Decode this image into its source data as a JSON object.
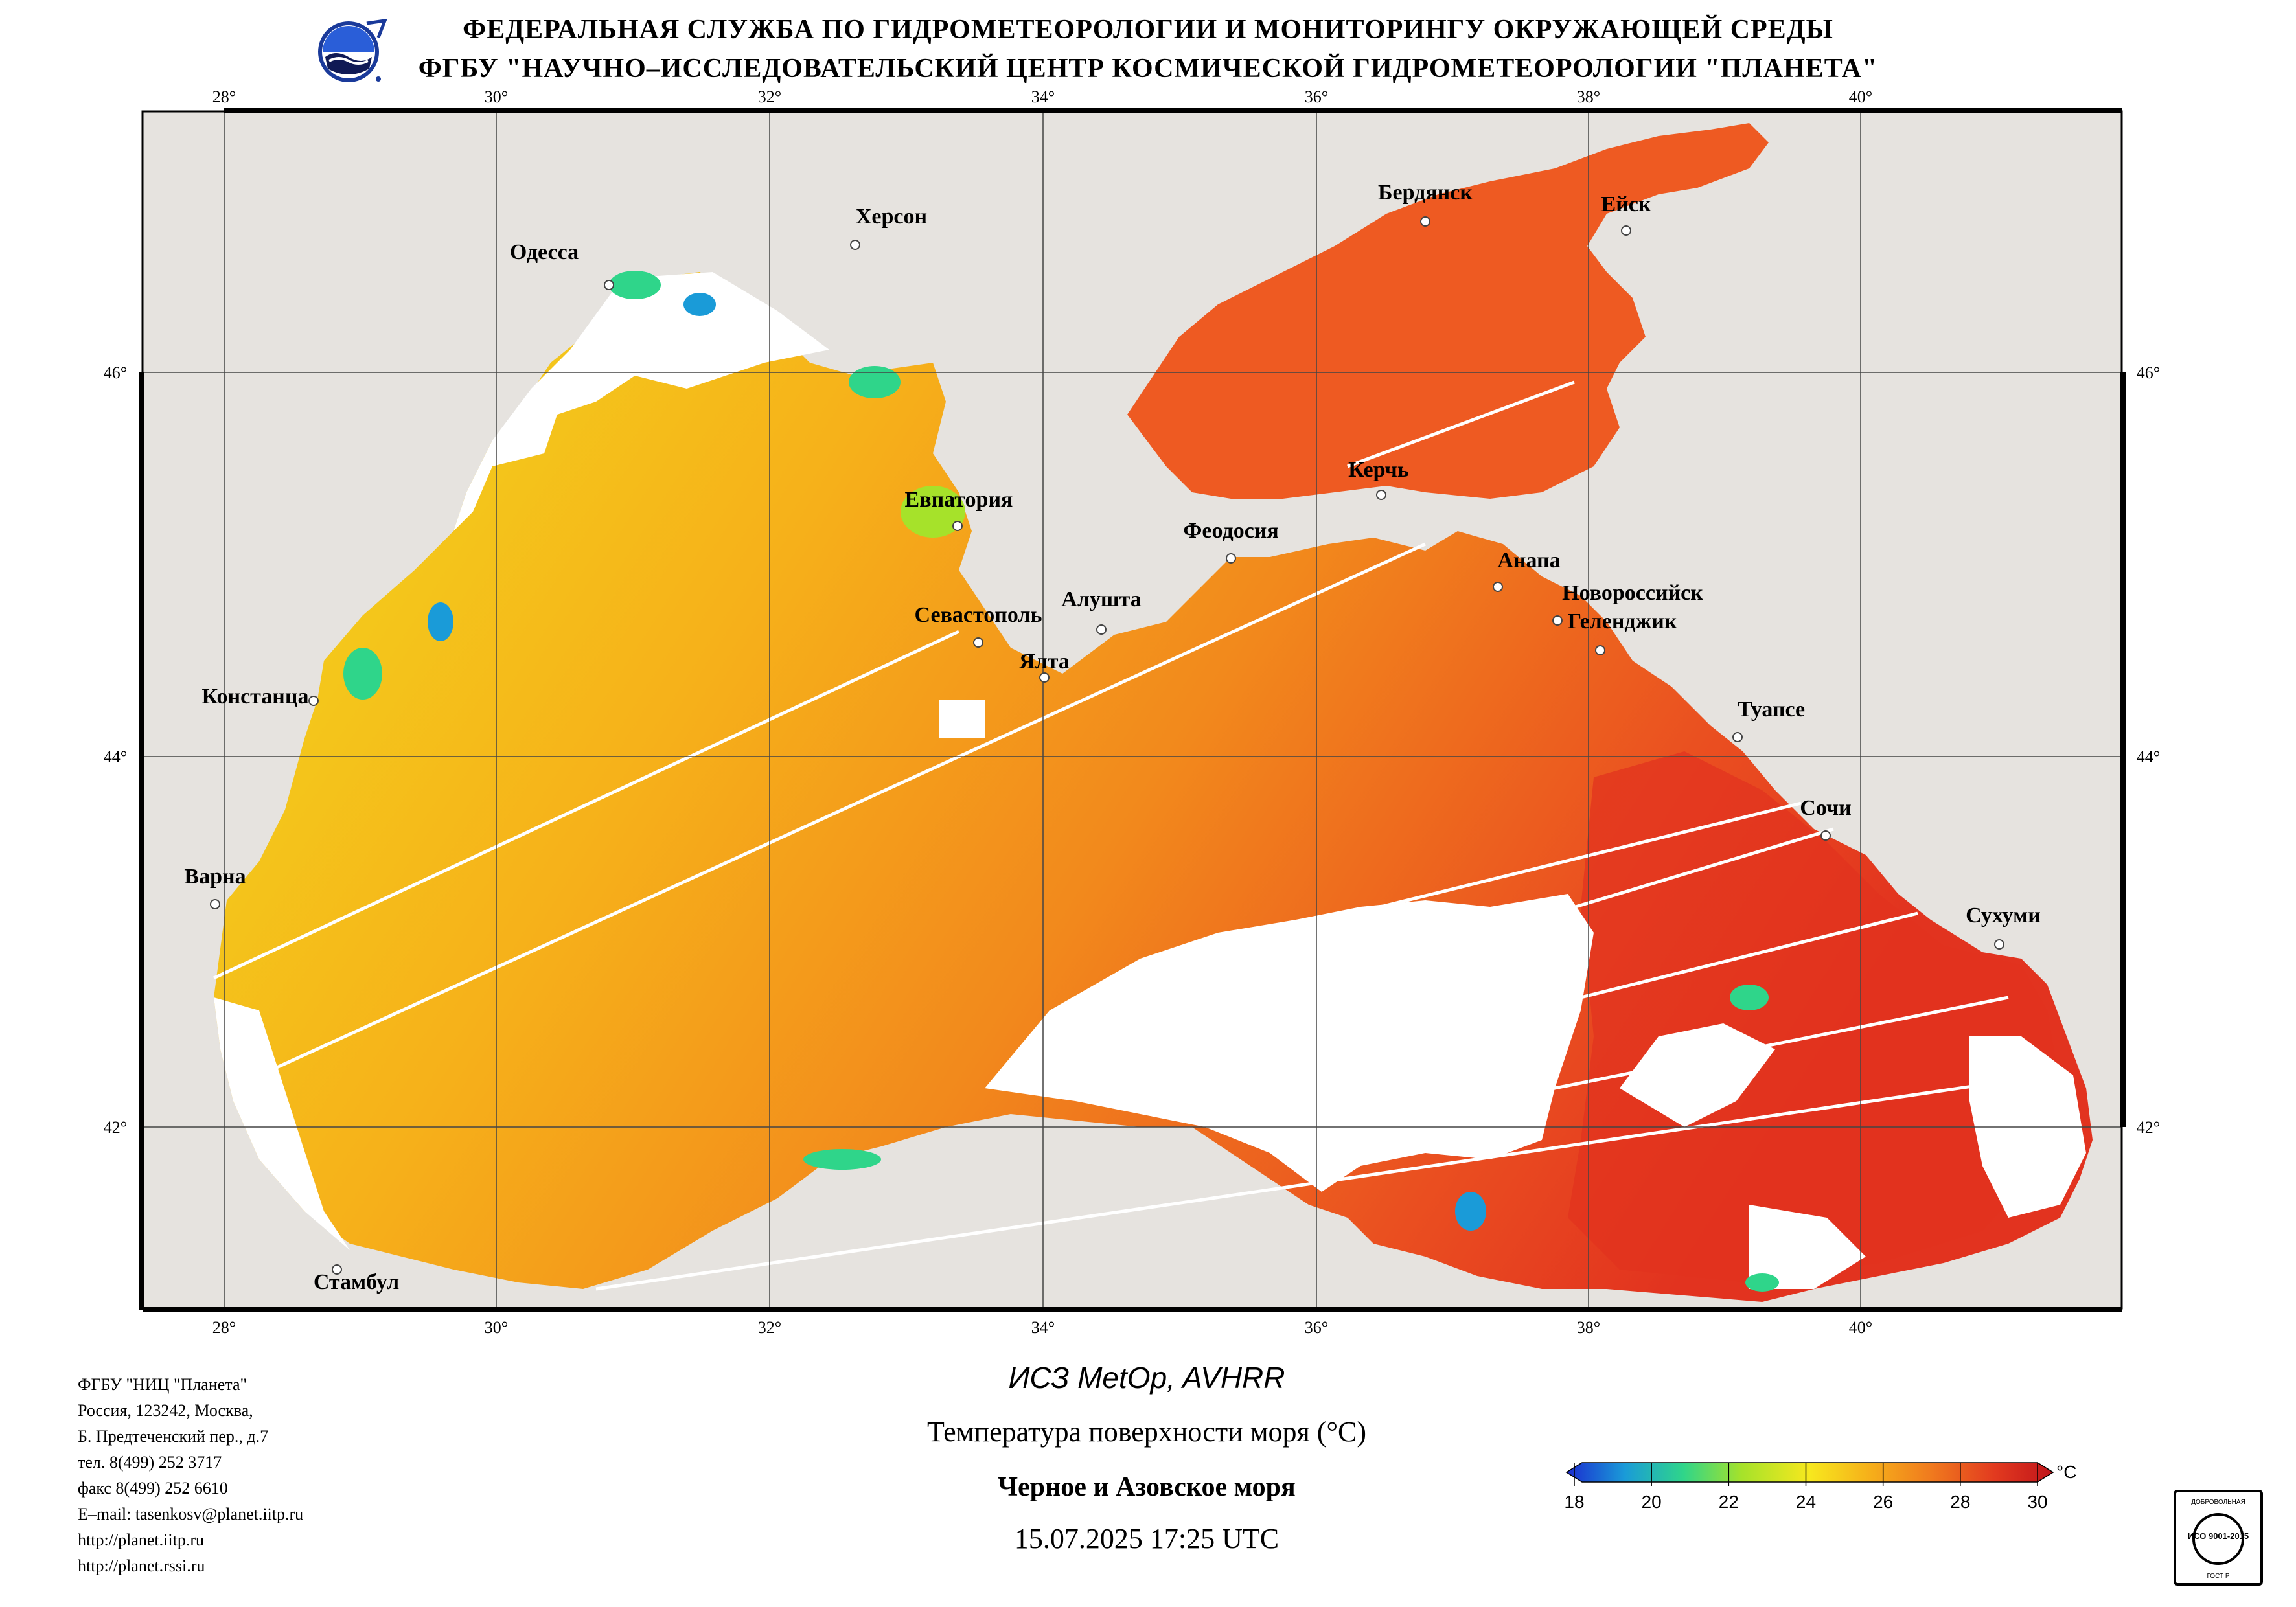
{
  "header": {
    "line1": "ФЕДЕРАЛЬНАЯ СЛУЖБА ПО ГИДРОМЕТЕОРОЛОГИИ И МОНИТОРИНГУ ОКРУЖАЮЩЕЙ СРЕДЫ",
    "line2": "ФГБУ \"НАУЧНО–ИССЛЕДОВАТЕЛЬСКИЙ ЦЕНТР КОСМИЧЕСКОЙ ГИДРОМЕТЕОРОЛОГИИ \"ПЛАНЕТА\""
  },
  "map": {
    "longitude_ticks": [
      "28°",
      "30°",
      "32°",
      "34°",
      "36°",
      "38°",
      "40°"
    ],
    "latitude_ticks": [
      "46°",
      "44°",
      "42°"
    ],
    "cities": [
      {
        "name": "Одесса"
      },
      {
        "name": "Херсон"
      },
      {
        "name": "Бердянск"
      },
      {
        "name": "Ейск"
      },
      {
        "name": "Евпатория"
      },
      {
        "name": "Керчь"
      },
      {
        "name": "Феодосия"
      },
      {
        "name": "Анапа"
      },
      {
        "name": "Новороссийск"
      },
      {
        "name": "Геленджик"
      },
      {
        "name": "Севастополь"
      },
      {
        "name": "Алушта"
      },
      {
        "name": "Ялта"
      },
      {
        "name": "Констанца"
      },
      {
        "name": "Туапсе"
      },
      {
        "name": "Сочи"
      },
      {
        "name": "Варна"
      },
      {
        "name": "Сухуми"
      },
      {
        "name": "Стамбул"
      }
    ],
    "colors": {
      "land": "#e6e3df",
      "cloud": "#ffffff",
      "sea_warm": "#f07a1e",
      "sea_mid": "#f6b31a",
      "sea_cool": "#f2d81c",
      "sea_hot": "#e2331f",
      "azov": "#ee5a22"
    }
  },
  "footer": {
    "org_lines": [
      "ФГБУ \"НИЦ \"Планета\"",
      "Россия, 123242, Москва,",
      "Б. Предтеченский пер., д.7",
      "тел. 8(499) 252 3717",
      "факс 8(499) 252 6610",
      "E–mail: tasenkosv@planet.iitp.ru",
      "http://planet.iitp.ru",
      "http://planet.rssi.ru"
    ],
    "sensor": "ИСЗ MetOp, AVHRR",
    "title": "Температура поверхности моря (°С)",
    "region": "Черное и Азовское моря",
    "datetime": "15.07.2025 17:25 UTC"
  },
  "legend": {
    "unit": "°С",
    "ticks": [
      "18",
      "20",
      "22",
      "24",
      "26",
      "28",
      "30"
    ],
    "min": 18,
    "max": 30,
    "colors": [
      "#1b2bd0",
      "#1a9bd8",
      "#2fd58a",
      "#a6e22a",
      "#f7e81e",
      "#f6b11a",
      "#f07a1e",
      "#e23a1f",
      "#c0141a"
    ]
  },
  "badge": {
    "top": "ДОБРОВОЛЬНАЯ",
    "mid": "ИСО 9001-2015",
    "bottom": "ГОСТ Р"
  }
}
